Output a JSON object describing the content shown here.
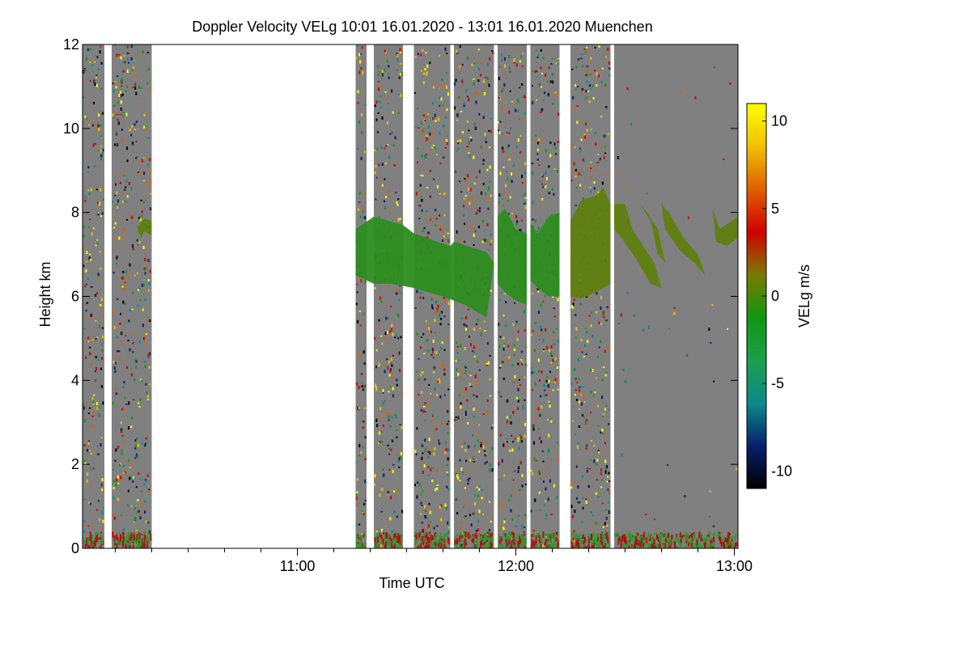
{
  "chart_data": {
    "type": "heatmap",
    "title": "Doppler Velocity VELg   10:01 16.01.2020 - 13:01 16.01.2020 Muenchen",
    "xlabel": "Time UTC",
    "ylabel": "Height km",
    "xlim_minutes_utc": [
      601,
      781
    ],
    "ylim_km": [
      0,
      12
    ],
    "x_ticks": [
      {
        "value": 660,
        "label": "11:00"
      },
      {
        "value": 720,
        "label": "12:00"
      },
      {
        "value": 780,
        "label": "13:00"
      }
    ],
    "x_minor_ticks": [
      610,
      620,
      630,
      640,
      650,
      670,
      680,
      690,
      700,
      710,
      730,
      740,
      750,
      760,
      770
    ],
    "y_ticks": [
      {
        "value": 0,
        "label": "0"
      },
      {
        "value": 2,
        "label": "2"
      },
      {
        "value": 4,
        "label": "4"
      },
      {
        "value": 6,
        "label": "6"
      },
      {
        "value": 8,
        "label": "8"
      },
      {
        "value": 10,
        "label": "10"
      },
      {
        "value": 12,
        "label": "12"
      }
    ],
    "colorbar": {
      "label": "VELg m/s",
      "range": [
        -11,
        11
      ],
      "ticks": [
        {
          "value": 10,
          "label": "10"
        },
        {
          "value": 5,
          "label": "5"
        },
        {
          "value": 0,
          "label": "0"
        },
        {
          "value": -5,
          "label": "-5"
        },
        {
          "value": -10,
          "label": "-10"
        }
      ],
      "colors": [
        "#000000",
        "#0a1f6e",
        "#0a8a8a",
        "#1aa04a",
        "#129612",
        "#7a7a00",
        "#d00000",
        "#e06000",
        "#f0c000",
        "#ffff00"
      ]
    },
    "data_segments_minutes": [
      [
        601,
        607
      ],
      [
        609,
        620
      ],
      [
        676,
        679
      ],
      [
        681,
        689
      ],
      [
        692,
        702
      ],
      [
        703,
        714
      ],
      [
        715,
        723
      ],
      [
        724,
        732
      ],
      [
        735,
        746
      ],
      [
        747,
        781
      ]
    ],
    "cloud_layer": {
      "base_km": [
        6.0,
        6.5
      ],
      "top_km": [
        7.8,
        8.6
      ],
      "velocity_ms": [
        -1,
        0
      ]
    },
    "colors": {
      "no_signal": "#808080",
      "no_data": "#ffffff",
      "cloud_main": "#2b8c1e",
      "cloud_olive": "#5e8010"
    }
  }
}
